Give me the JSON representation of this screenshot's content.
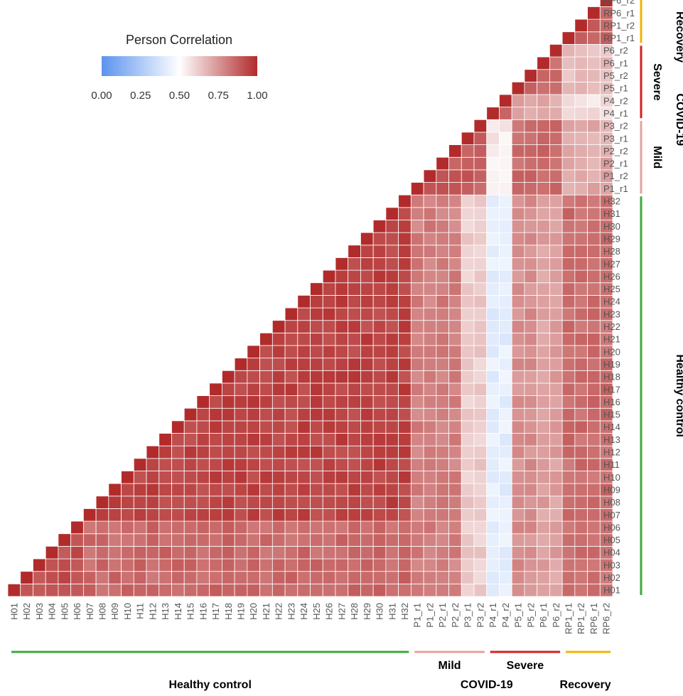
{
  "chart_data": {
    "type": "heatmap",
    "title": "",
    "legend": {
      "title": "Person Correlation",
      "ticks": [
        "0.00",
        "0.25",
        "0.50",
        "0.75",
        "1.00"
      ],
      "range": [
        0,
        1
      ],
      "colors": {
        "low": "#5b93ef",
        "mid": "#ffffff",
        "high": "#b22b2b"
      },
      "placement": "top-left"
    },
    "labels": [
      "H01",
      "H02",
      "H03",
      "H04",
      "H05",
      "H06",
      "H07",
      "H08",
      "H09",
      "H10",
      "H11",
      "H12",
      "H13",
      "H14",
      "H15",
      "H16",
      "H17",
      "H18",
      "H19",
      "H20",
      "H21",
      "H22",
      "H23",
      "H24",
      "H25",
      "H26",
      "H27",
      "H28",
      "H29",
      "H30",
      "H31",
      "H32",
      "P1_r1",
      "P1_r2",
      "P2_r1",
      "P2_r2",
      "P3_r1",
      "P3_r2",
      "P4_r1",
      "P4_r2",
      "P5_r1",
      "P5_r2",
      "P6_r1",
      "P6_r2",
      "RP1_r1",
      "RP1_r2",
      "RP6_r1",
      "RP6_r2"
    ],
    "groups": [
      {
        "name": "Healthy control",
        "start": 0,
        "end": 31,
        "color": "#3daa3d"
      },
      {
        "name": "Mild",
        "start": 32,
        "end": 37,
        "color": "#e4a0a0"
      },
      {
        "name": "Severe",
        "start": 38,
        "end": 43,
        "color": "#d62020"
      },
      {
        "name": "Recovery",
        "start": 44,
        "end": 47,
        "color": "#f0b400"
      }
    ],
    "supergroup": {
      "name": "COVID-19",
      "start": 32,
      "end": 43
    },
    "block_values": {
      "H_low_low": 0.92,
      "H_low_high": 0.85,
      "H_high_high": 0.94,
      "H_Mild": 0.8,
      "H_P3": 0.62,
      "H_P4": 0.42,
      "H_P5": 0.76,
      "H_P6": 0.72,
      "H_Recovery": 0.84,
      "Mild_Mild": 0.88,
      "Mild_P4": 0.55,
      "Mild_P5P6": 0.85,
      "Mild_Recovery": 0.7,
      "P4_P4": 0.86,
      "P4_other_severe": 0.7,
      "P4_Recovery": 0.58,
      "P5P6_P5P6": 0.85,
      "P5P6_Recovery": 0.65,
      "Recovery_Recovery": 0.88,
      "diagonal": 1.0
    },
    "grid": true
  }
}
